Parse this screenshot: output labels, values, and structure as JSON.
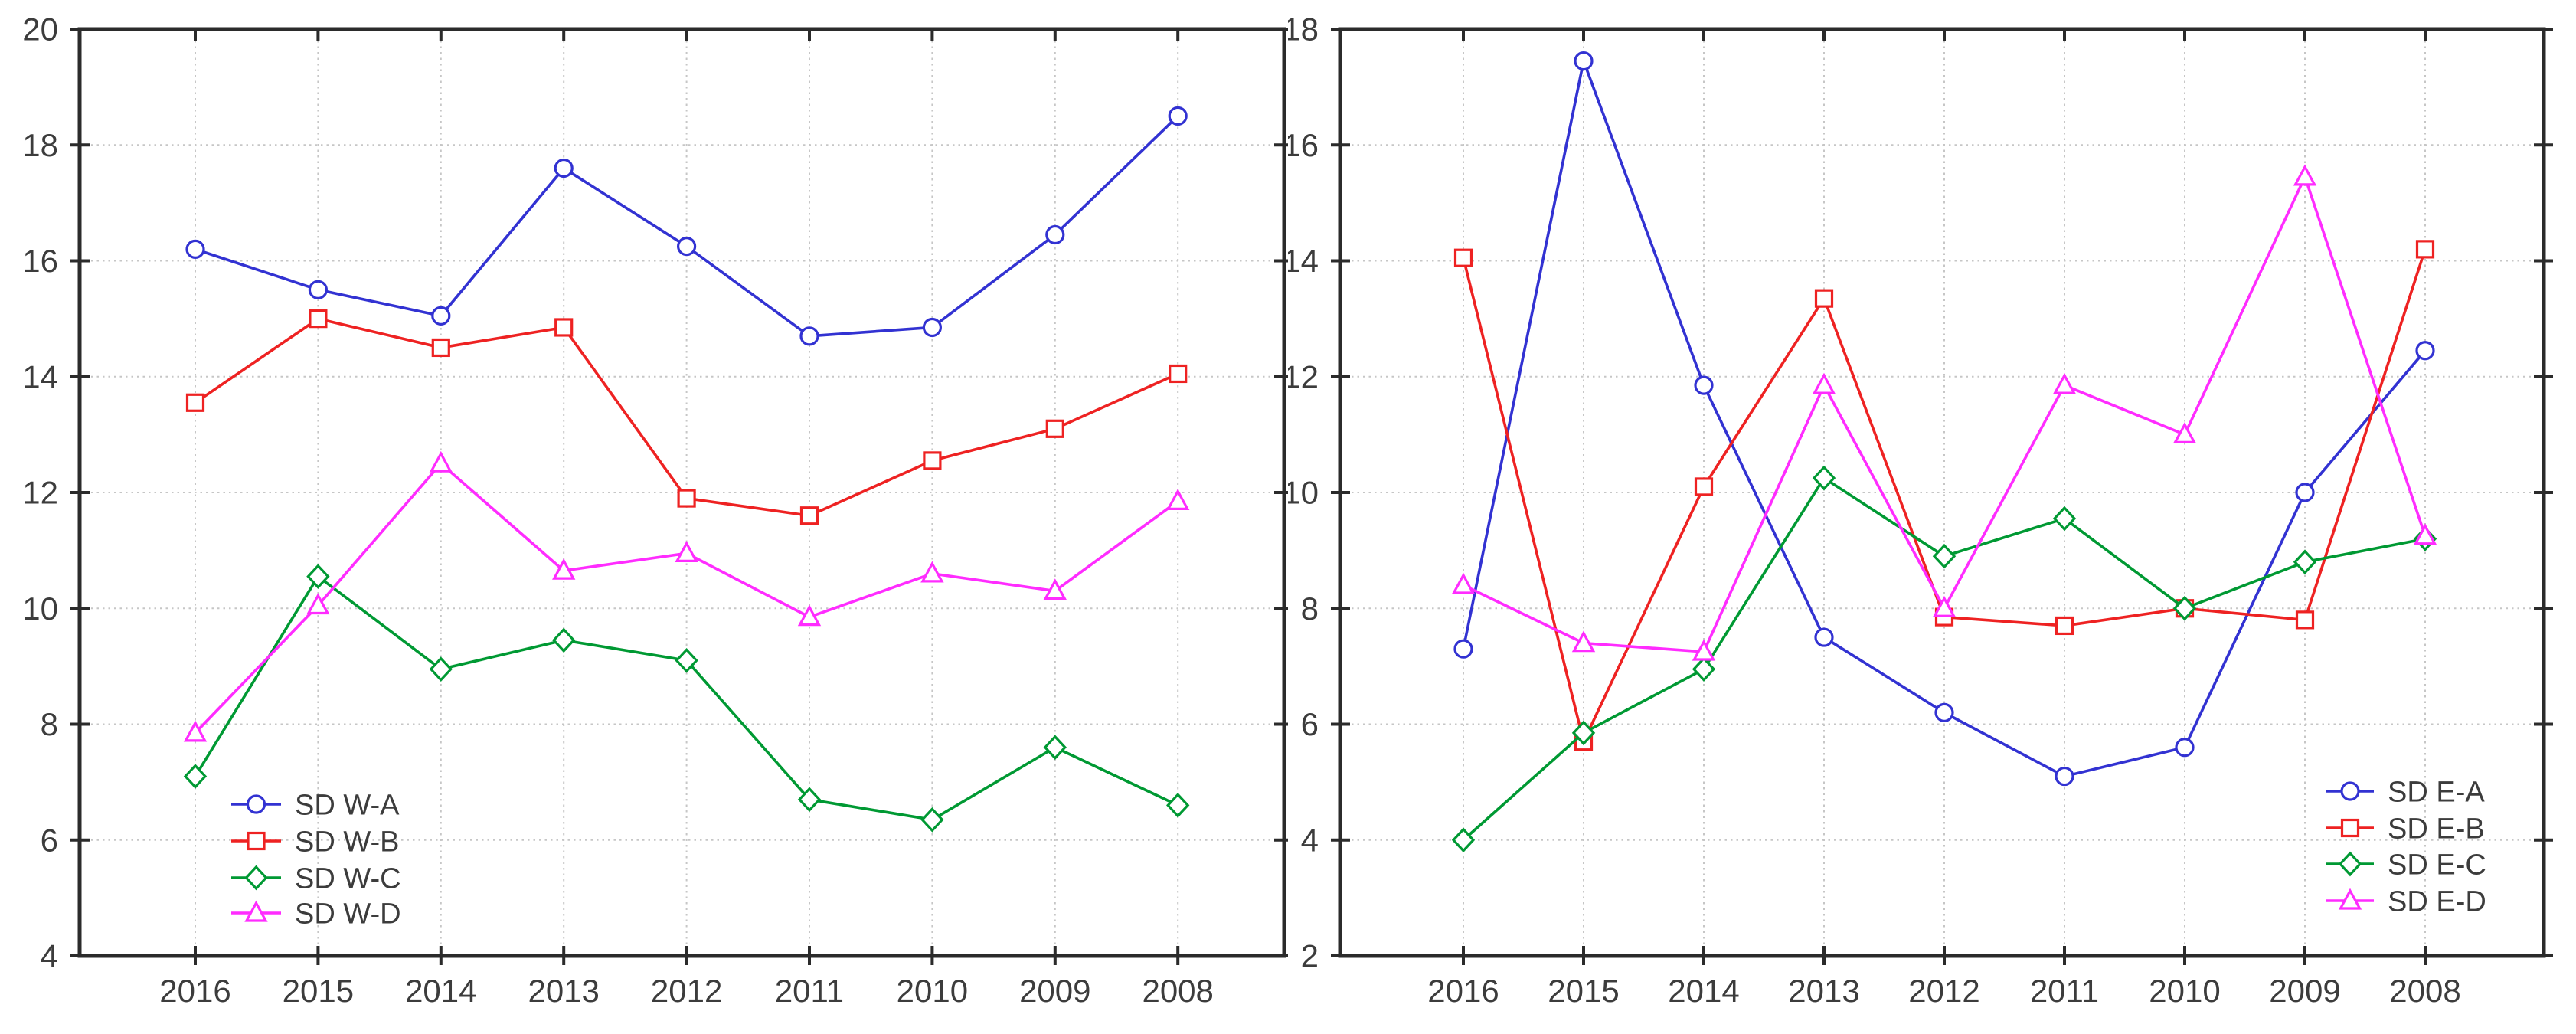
{
  "styles": {
    "background": "#ffffff",
    "axis_color": "#2b2b2b",
    "grid_color": "#c6c6c6",
    "label_color": "#3c3c3c",
    "series_blue": "#3232d2",
    "series_red": "#ee2222",
    "series_green": "#009933",
    "series_magenta": "#ff2cff"
  },
  "chart_data": [
    {
      "type": "line",
      "title": "",
      "xlabel": "",
      "ylabel": "",
      "categories": [
        "2016",
        "2015",
        "2014",
        "2013",
        "2012",
        "2011",
        "2010",
        "2009",
        "2008"
      ],
      "ylim": [
        4,
        20
      ],
      "ytick_step": 2,
      "ytick_labels": [
        "4",
        "6",
        "8",
        "10",
        "12",
        "14",
        "16",
        "18",
        "20"
      ],
      "grid": true,
      "legend_position": "bottom-left",
      "series": [
        {
          "name": "SD W-A",
          "color": "#3232d2",
          "marker": "circle",
          "values": [
            16.2,
            15.5,
            15.05,
            17.6,
            16.25,
            14.7,
            14.85,
            16.45,
            18.5
          ]
        },
        {
          "name": "SD W-B",
          "color": "#ee2222",
          "marker": "square",
          "values": [
            13.55,
            15.0,
            14.5,
            14.85,
            11.9,
            11.6,
            12.55,
            13.1,
            14.05
          ]
        },
        {
          "name": "SD W-C",
          "color": "#009933",
          "marker": "diamond",
          "values": [
            7.1,
            10.55,
            8.95,
            9.45,
            9.1,
            6.7,
            6.35,
            7.6,
            6.6
          ]
        },
        {
          "name": "SD W-D",
          "color": "#ff2cff",
          "marker": "triangle",
          "values": [
            7.85,
            10.05,
            12.5,
            10.65,
            10.95,
            9.85,
            10.6,
            10.3,
            11.85
          ]
        }
      ]
    },
    {
      "type": "line",
      "title": "",
      "xlabel": "",
      "ylabel": "",
      "categories": [
        "2016",
        "2015",
        "2014",
        "2013",
        "2012",
        "2011",
        "2010",
        "2009",
        "2008"
      ],
      "ylim": [
        2,
        18
      ],
      "ytick_step": 2,
      "ytick_labels": [
        "2",
        "4",
        "6",
        "8",
        "10",
        "12",
        "14",
        "16",
        "18"
      ],
      "grid": true,
      "legend_position": "bottom-right",
      "series": [
        {
          "name": "SD E-A",
          "color": "#3232d2",
          "marker": "circle",
          "values": [
            7.3,
            17.45,
            11.85,
            7.5,
            6.2,
            5.1,
            5.6,
            10.0,
            12.45
          ]
        },
        {
          "name": "SD E-B",
          "color": "#ee2222",
          "marker": "square",
          "values": [
            14.05,
            5.7,
            10.1,
            13.35,
            7.85,
            7.7,
            8.0,
            7.8,
            14.2
          ]
        },
        {
          "name": "SD E-C",
          "color": "#009933",
          "marker": "diamond",
          "values": [
            4.0,
            5.85,
            6.95,
            10.25,
            8.9,
            9.55,
            8.0,
            8.8,
            9.2
          ]
        },
        {
          "name": "SD E-D",
          "color": "#ff2cff",
          "marker": "triangle",
          "values": [
            8.4,
            7.4,
            7.25,
            11.85,
            8.0,
            11.85,
            11.0,
            15.45,
            9.25
          ]
        }
      ]
    }
  ]
}
